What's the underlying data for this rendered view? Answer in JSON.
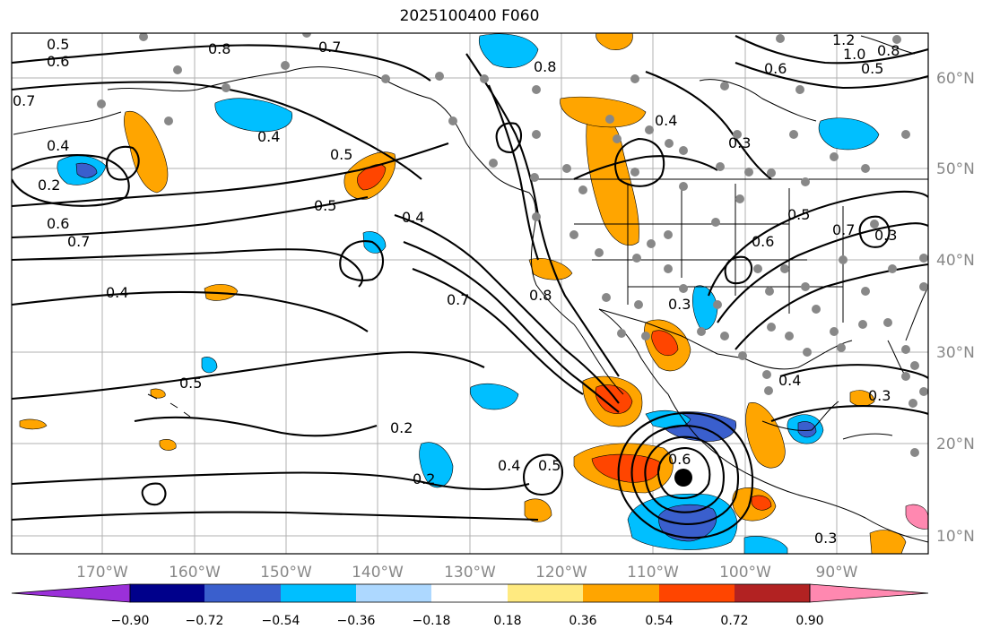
{
  "title": "2025100400 F060",
  "map": {
    "lon_labels": [
      "170°W",
      "160°W",
      "150°W",
      "140°W",
      "130°W",
      "120°W",
      "110°W",
      "100°W",
      "90°W"
    ],
    "lat_labels": [
      "60°N",
      "50°N",
      "40°N",
      "30°N",
      "20°N",
      "10°N"
    ],
    "contour_labels": [
      "0.5",
      "0.6",
      "0.7",
      "0.8",
      "0.7",
      "0.4",
      "0.2",
      "0.6",
      "0.7",
      "0.4",
      "0.5",
      "0.5",
      "0.4",
      "0.7",
      "0.8",
      "0.3",
      "0.5",
      "0.2",
      "0.5",
      "0.4",
      "0.2",
      "0.6",
      "0.4",
      "0.3",
      "0.5",
      "0.6",
      "0.7",
      "0.4",
      "0.3",
      "0.3",
      "1.2",
      "1.0",
      "0.8",
      "0.5",
      "0.6",
      "0.3",
      "0.4",
      "0.8"
    ],
    "shading_colors": {
      "purple": "#9b30d9",
      "navy": "#00008b",
      "blue": "#3a5fcd",
      "deepsky": "#00bfff",
      "lightblue": "#add8ff",
      "yellow": "#ffea80",
      "orange": "#ffa500",
      "orangered": "#ff4500",
      "firebrick": "#b22222",
      "pink": "#ff88b0"
    },
    "station_marker_color": "#888888",
    "cyclone_marker_color": "#000000"
  },
  "colorbar": {
    "ticks": [
      "−0.90",
      "−0.72",
      "−0.54",
      "−0.36",
      "−0.18",
      "0.18",
      "0.36",
      "0.54",
      "0.72",
      "0.90"
    ],
    "colors": [
      "#9b30d9",
      "#00008b",
      "#3a5fcd",
      "#00bfff",
      "#add8ff",
      "#ffffff",
      "#ffea80",
      "#ffa500",
      "#ff4500",
      "#b22222",
      "#ff88b0"
    ],
    "extend": "both"
  }
}
